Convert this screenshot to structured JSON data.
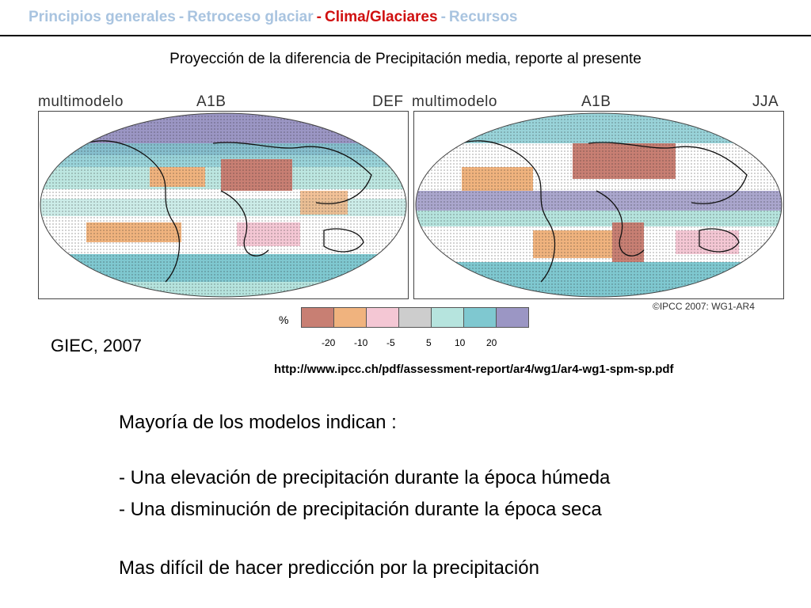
{
  "nav": {
    "items": [
      {
        "label": "Principios generales",
        "color": "#a9c4e0"
      },
      {
        "label": "Retroceso glaciar",
        "color": "#a9c4e0"
      },
      {
        "label": "Clima/Glaciares",
        "color": "#d01010"
      },
      {
        "label": "Recursos",
        "color": "#a9c4e0"
      }
    ],
    "separator": "-"
  },
  "figure": {
    "title": "Proyección de la diferencia de Precipitación media, reporte al presente",
    "panels": [
      {
        "model": "multimodelo",
        "scenario": "A1B",
        "season": "DEF"
      },
      {
        "model": "multimodelo",
        "scenario": "A1B",
        "season": "JJA"
      }
    ],
    "copyright": "©IPCC 2007: WG1-AR4",
    "legend": {
      "unit": "%",
      "colors": [
        "#c87f73",
        "#f0b37e",
        "#f4c7d4",
        "#cdcdcd",
        "#b6e4de",
        "#7fc8d0",
        "#9b96c4"
      ],
      "ticks": [
        "-20",
        "-10",
        "-5",
        "5",
        "10",
        "20"
      ]
    }
  },
  "source": "GIEC, 2007",
  "url": "http://www.ipcc.ch/pdf/assessment-report/ar4/wg1/ar4-wg1-spm-sp.pdf",
  "body": {
    "intro": "Mayoría de los modelos indican :",
    "bullets": [
      "- Una elevación de precipitación durante la época húmeda",
      "- Una disminución de precipitación durante la época seca"
    ],
    "conclusion_arrow": "",
    "conclusion": "Mas difícil de hacer predicción por la precipitación"
  }
}
